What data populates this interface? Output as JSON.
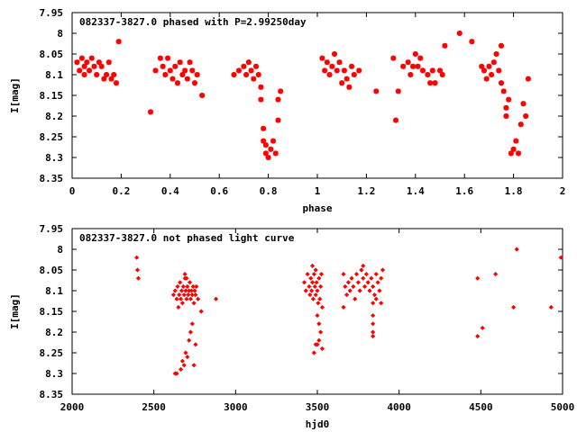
{
  "chart_data": [
    {
      "type": "scatter",
      "title": "082337-3827.0 phased with P=2.99250day",
      "xlabel": "phase",
      "ylabel": "I[mag]",
      "xlim": [
        0,
        2
      ],
      "ylim": [
        8.35,
        7.95
      ],
      "y_inverted": true,
      "grid": false,
      "xticks": [
        "0",
        "0.2",
        "0.4",
        "0.6",
        "0.8",
        "1",
        "1.2",
        "1.4",
        "1.6",
        "1.8",
        "2"
      ],
      "xtick_values": [
        0,
        0.2,
        0.4,
        0.6,
        0.8,
        1.0,
        1.2,
        1.4,
        1.6,
        1.8,
        2.0
      ],
      "yticks": [
        "7.95",
        "8",
        "8.05",
        "8.1",
        "8.15",
        "8.2",
        "8.25",
        "8.3",
        "8.35"
      ],
      "ytick_values": [
        7.95,
        8.0,
        8.05,
        8.1,
        8.15,
        8.2,
        8.25,
        8.3,
        8.35
      ],
      "marker": "star",
      "color": "#ff0000",
      "series": [
        {
          "points": [
            [
              0.02,
              8.07
            ],
            [
              0.03,
              8.09
            ],
            [
              0.04,
              8.06
            ],
            [
              0.05,
              8.08
            ],
            [
              0.05,
              8.1
            ],
            [
              0.06,
              8.07
            ],
            [
              0.07,
              8.09
            ],
            [
              0.08,
              8.06
            ],
            [
              0.09,
              8.08
            ],
            [
              0.1,
              8.1
            ],
            [
              0.11,
              8.07
            ],
            [
              0.12,
              8.08
            ],
            [
              0.13,
              8.11
            ],
            [
              0.14,
              8.1
            ],
            [
              0.15,
              8.07
            ],
            [
              0.16,
              8.11
            ],
            [
              0.17,
              8.1
            ],
            [
              0.18,
              8.12
            ],
            [
              0.19,
              8.02
            ],
            [
              0.32,
              8.19
            ],
            [
              0.34,
              8.09
            ],
            [
              0.36,
              8.06
            ],
            [
              0.37,
              8.08
            ],
            [
              0.38,
              8.1
            ],
            [
              0.39,
              8.06
            ],
            [
              0.4,
              8.09
            ],
            [
              0.41,
              8.11
            ],
            [
              0.42,
              8.08
            ],
            [
              0.43,
              8.12
            ],
            [
              0.44,
              8.07
            ],
            [
              0.45,
              8.1
            ],
            [
              0.46,
              8.09
            ],
            [
              0.47,
              8.11
            ],
            [
              0.48,
              8.07
            ],
            [
              0.49,
              8.09
            ],
            [
              0.5,
              8.12
            ],
            [
              0.51,
              8.1
            ],
            [
              0.53,
              8.15
            ],
            [
              0.66,
              8.1
            ],
            [
              0.68,
              8.09
            ],
            [
              0.7,
              8.08
            ],
            [
              0.71,
              8.1
            ],
            [
              0.72,
              8.07
            ],
            [
              0.73,
              8.09
            ],
            [
              0.74,
              8.11
            ],
            [
              0.75,
              8.08
            ],
            [
              0.76,
              8.1
            ],
            [
              0.77,
              8.13
            ],
            [
              0.77,
              8.16
            ],
            [
              0.78,
              8.23
            ],
            [
              0.78,
              8.26
            ],
            [
              0.79,
              8.29
            ],
            [
              0.79,
              8.27
            ],
            [
              0.8,
              8.3
            ],
            [
              0.81,
              8.28
            ],
            [
              0.82,
              8.26
            ],
            [
              0.83,
              8.29
            ],
            [
              0.84,
              8.21
            ],
            [
              0.84,
              8.16
            ],
            [
              0.85,
              8.14
            ],
            [
              1.02,
              8.06
            ],
            [
              1.03,
              8.09
            ],
            [
              1.04,
              8.07
            ],
            [
              1.05,
              8.1
            ],
            [
              1.06,
              8.08
            ],
            [
              1.07,
              8.05
            ],
            [
              1.08,
              8.09
            ],
            [
              1.09,
              8.07
            ],
            [
              1.1,
              8.12
            ],
            [
              1.11,
              8.09
            ],
            [
              1.12,
              8.11
            ],
            [
              1.13,
              8.13
            ],
            [
              1.14,
              8.08
            ],
            [
              1.15,
              8.1
            ],
            [
              1.17,
              8.09
            ],
            [
              1.24,
              8.14
            ],
            [
              1.31,
              8.06
            ],
            [
              1.32,
              8.21
            ],
            [
              1.33,
              8.14
            ],
            [
              1.35,
              8.08
            ],
            [
              1.37,
              8.07
            ],
            [
              1.38,
              8.1
            ],
            [
              1.39,
              8.08
            ],
            [
              1.4,
              8.05
            ],
            [
              1.41,
              8.08
            ],
            [
              1.42,
              8.06
            ],
            [
              1.43,
              8.09
            ],
            [
              1.45,
              8.1
            ],
            [
              1.46,
              8.12
            ],
            [
              1.47,
              8.09
            ],
            [
              1.48,
              8.12
            ],
            [
              1.5,
              8.09
            ],
            [
              1.51,
              8.1
            ],
            [
              1.52,
              8.03
            ],
            [
              1.58,
              8.0
            ],
            [
              1.63,
              8.02
            ],
            [
              1.67,
              8.08
            ],
            [
              1.68,
              8.09
            ],
            [
              1.69,
              8.11
            ],
            [
              1.7,
              8.08
            ],
            [
              1.71,
              8.1
            ],
            [
              1.72,
              8.07
            ],
            [
              1.73,
              8.05
            ],
            [
              1.74,
              8.09
            ],
            [
              1.75,
              8.03
            ],
            [
              1.75,
              8.12
            ],
            [
              1.76,
              8.14
            ],
            [
              1.77,
              8.18
            ],
            [
              1.77,
              8.2
            ],
            [
              1.78,
              8.16
            ],
            [
              1.79,
              8.29
            ],
            [
              1.8,
              8.28
            ],
            [
              1.81,
              8.26
            ],
            [
              1.82,
              8.29
            ],
            [
              1.83,
              8.22
            ],
            [
              1.84,
              8.17
            ],
            [
              1.85,
              8.2
            ],
            [
              1.86,
              8.11
            ]
          ]
        }
      ]
    },
    {
      "type": "scatter",
      "title": "082337-3827.0 not phased light curve",
      "xlabel": "hjd0",
      "ylabel": "I[mag]",
      "xlim": [
        2000,
        5000
      ],
      "ylim": [
        8.35,
        7.95
      ],
      "y_inverted": true,
      "grid": false,
      "xticks": [
        "2000",
        "2500",
        "3000",
        "3500",
        "4000",
        "4500",
        "5000"
      ],
      "xtick_values": [
        2000,
        2500,
        3000,
        3500,
        4000,
        4500,
        5000
      ],
      "yticks": [
        "7.95",
        "8",
        "8.05",
        "8.1",
        "8.15",
        "8.2",
        "8.25",
        "8.3",
        "8.35"
      ],
      "ytick_values": [
        7.95,
        8.0,
        8.05,
        8.1,
        8.15,
        8.2,
        8.25,
        8.3,
        8.35
      ],
      "marker": "diamond",
      "color": "#ff0000",
      "series": [
        {
          "points": [
            [
              2395,
              8.02
            ],
            [
              2400,
              8.05
            ],
            [
              2405,
              8.07
            ],
            [
              2620,
              8.11
            ],
            [
              2630,
              8.1
            ],
            [
              2640,
              8.12
            ],
            [
              2645,
              8.09
            ],
            [
              2650,
              8.14
            ],
            [
              2655,
              8.11
            ],
            [
              2660,
              8.08
            ],
            [
              2665,
              8.12
            ],
            [
              2670,
              8.1
            ],
            [
              2675,
              8.13
            ],
            [
              2680,
              8.09
            ],
            [
              2685,
              8.11
            ],
            [
              2690,
              8.07
            ],
            [
              2695,
              8.1
            ],
            [
              2700,
              8.12
            ],
            [
              2705,
              8.09
            ],
            [
              2710,
              8.11
            ],
            [
              2715,
              8.1
            ],
            [
              2720,
              8.08
            ],
            [
              2725,
              8.12
            ],
            [
              2730,
              8.1
            ],
            [
              2735,
              8.11
            ],
            [
              2740,
              8.09
            ],
            [
              2745,
              8.13
            ],
            [
              2750,
              8.1
            ],
            [
              2755,
              8.11
            ],
            [
              2760,
              8.09
            ],
            [
              2770,
              8.12
            ],
            [
              2790,
              8.15
            ],
            [
              2880,
              8.12
            ],
            [
              2630,
              8.3
            ],
            [
              2640,
              8.3
            ],
            [
              2665,
              8.29
            ],
            [
              2675,
              8.27
            ],
            [
              2685,
              8.28
            ],
            [
              2695,
              8.25
            ],
            [
              2705,
              8.26
            ],
            [
              2715,
              8.22
            ],
            [
              2725,
              8.2
            ],
            [
              2735,
              8.18
            ],
            [
              2745,
              8.28
            ],
            [
              2755,
              8.23
            ],
            [
              2690,
              8.06
            ],
            [
              2700,
              8.07
            ],
            [
              3420,
              8.08
            ],
            [
              3430,
              8.1
            ],
            [
              3440,
              8.06
            ],
            [
              3450,
              8.09
            ],
            [
              3455,
              8.11
            ],
            [
              3460,
              8.07
            ],
            [
              3465,
              8.1
            ],
            [
              3470,
              8.08
            ],
            [
              3475,
              8.12
            ],
            [
              3480,
              8.06
            ],
            [
              3485,
              8.09
            ],
            [
              3490,
              8.11
            ],
            [
              3495,
              8.08
            ],
            [
              3500,
              8.1
            ],
            [
              3505,
              8.13
            ],
            [
              3510,
              8.07
            ],
            [
              3515,
              8.12
            ],
            [
              3520,
              8.09
            ],
            [
              3525,
              8.06
            ],
            [
              3530,
              8.14
            ],
            [
              3470,
              8.04
            ],
            [
              3490,
              8.05
            ],
            [
              3500,
              8.16
            ],
            [
              3510,
              8.18
            ],
            [
              3520,
              8.2
            ],
            [
              3500,
              8.23
            ],
            [
              3510,
              8.22
            ],
            [
              3480,
              8.25
            ],
            [
              3490,
              8.23
            ],
            [
              3530,
              8.24
            ],
            [
              3660,
              8.06
            ],
            [
              3670,
              8.09
            ],
            [
              3680,
              8.11
            ],
            [
              3690,
              8.08
            ],
            [
              3700,
              8.1
            ],
            [
              3710,
              8.07
            ],
            [
              3720,
              8.09
            ],
            [
              3730,
              8.12
            ],
            [
              3740,
              8.06
            ],
            [
              3750,
              8.08
            ],
            [
              3760,
              8.1
            ],
            [
              3770,
              8.05
            ],
            [
              3780,
              8.07
            ],
            [
              3790,
              8.09
            ],
            [
              3800,
              8.06
            ],
            [
              3810,
              8.08
            ],
            [
              3820,
              8.1
            ],
            [
              3830,
              8.07
            ],
            [
              3840,
              8.09
            ],
            [
              3850,
              8.11
            ],
            [
              3860,
              8.06
            ],
            [
              3870,
              8.08
            ],
            [
              3880,
              8.1
            ],
            [
              3890,
              8.07
            ],
            [
              3900,
              8.05
            ],
            [
              3660,
              8.14
            ],
            [
              3840,
              8.13
            ],
            [
              3840,
              8.16
            ],
            [
              3840,
              8.18
            ],
            [
              3840,
              8.2
            ],
            [
              3840,
              8.21
            ],
            [
              3780,
              8.04
            ],
            [
              3860,
              8.12
            ],
            [
              3890,
              8.13
            ],
            [
              4480,
              8.07
            ],
            [
              4480,
              8.21
            ],
            [
              4510,
              8.19
            ],
            [
              4590,
              8.06
            ],
            [
              4700,
              8.14
            ],
            [
              4720,
              8.0
            ],
            [
              4930,
              8.14
            ],
            [
              4990,
              8.02
            ]
          ]
        }
      ]
    }
  ]
}
